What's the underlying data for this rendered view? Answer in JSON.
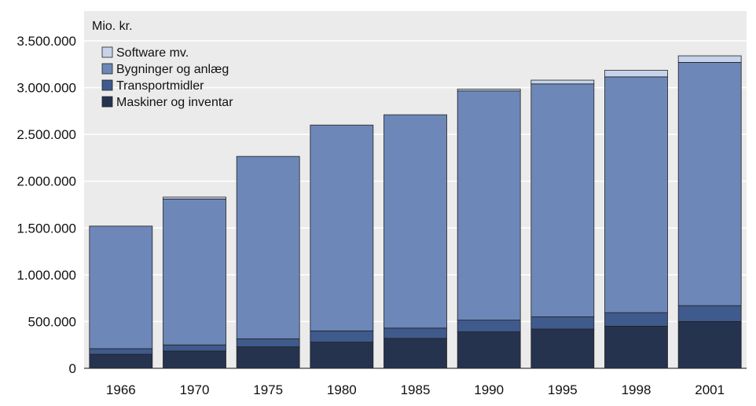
{
  "chart_data": {
    "type": "bar",
    "stacked": true,
    "unit_label": "Mio. kr.",
    "categories": [
      "1966",
      "1970",
      "1975",
      "1980",
      "1985",
      "1990",
      "1995",
      "1998",
      "2001"
    ],
    "series": [
      {
        "name": "Maskiner og inventar",
        "color": "#26334f",
        "values": [
          150000,
          185000,
          230000,
          280000,
          320000,
          390000,
          420000,
          450000,
          500000
        ]
      },
      {
        "name": "Transportmidler",
        "color": "#3f5a8c",
        "values": [
          60000,
          65000,
          85000,
          120000,
          110000,
          125000,
          130000,
          145000,
          170000
        ]
      },
      {
        "name": "Bygninger og anlæg",
        "color": "#6d87b8",
        "values": [
          1310000,
          1560000,
          1950000,
          2200000,
          2280000,
          2450000,
          2490000,
          2520000,
          2600000
        ]
      },
      {
        "name": "Software mv.",
        "color": "#c6d3ea",
        "values": [
          0,
          20000,
          0,
          0,
          0,
          20000,
          40000,
          70000,
          70000
        ]
      }
    ],
    "legend_order": [
      "Software mv.",
      "Bygninger og anlæg",
      "Transportmidler",
      "Maskiner og inventar"
    ],
    "legend_position": "top-left",
    "ylim": [
      0,
      3500000
    ],
    "yticks": [
      0,
      500000,
      1000000,
      1500000,
      2000000,
      2500000,
      3000000,
      3500000
    ],
    "ytick_labels": [
      "0",
      "500.000",
      "1.000.000",
      "1.500.000",
      "2.000.000",
      "2.500.000",
      "3.000.000",
      "3.500.000"
    ],
    "grid": true,
    "plot_background": "#ebebeb",
    "gridline_color": "#ffffff"
  }
}
